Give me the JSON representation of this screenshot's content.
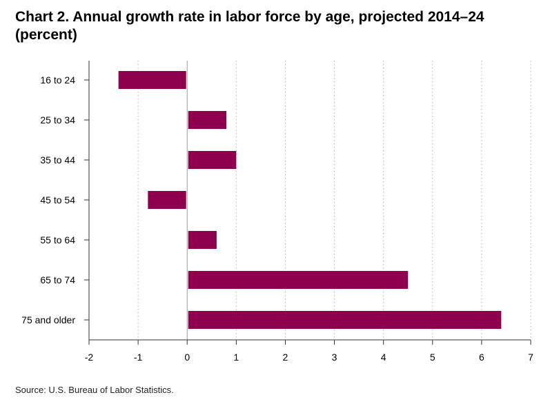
{
  "page": {
    "title": "Chart 2. Annual growth rate in labor force by age, projected 2014–24 (percent)",
    "source": "Source: U.S. Bureau of Labor Statistics."
  },
  "colors": {
    "bar": "#8e004e",
    "grid": "#b0b0b0",
    "axis": "#333333",
    "zero_line": "#999999"
  },
  "chart_data": {
    "type": "bar",
    "orientation": "horizontal",
    "title": "Chart 2. Annual growth rate in labor force by age, projected 2014–24 (percent)",
    "xlabel": "",
    "ylabel": "",
    "categories": [
      "16 to 24",
      "25 to 34",
      "35 to 44",
      "45 to 54",
      "55 to 64",
      "65 to 74",
      "75 and older"
    ],
    "values": [
      -1.4,
      0.8,
      1.0,
      -0.8,
      0.6,
      4.5,
      6.4
    ],
    "xlim": [
      -2,
      7
    ],
    "xticks": [
      -2,
      -1,
      0,
      1,
      2,
      3,
      4,
      5,
      6,
      7
    ],
    "xtick_labels": [
      "-2",
      "-1",
      "0",
      "1",
      "2",
      "3",
      "4",
      "5",
      "6",
      "7"
    ],
    "grid": "vertical dotted",
    "legend": "none"
  }
}
